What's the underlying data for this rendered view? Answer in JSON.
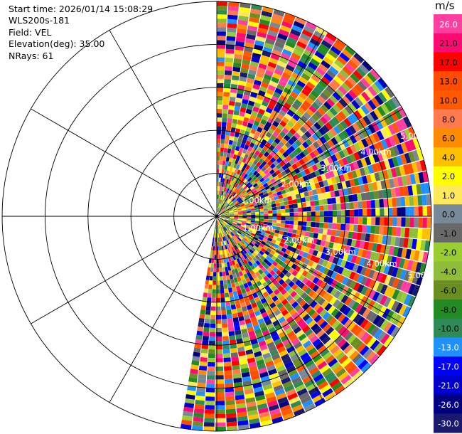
{
  "header": {
    "start_time": "Start time: 2026/01/14 15:08:29",
    "instrument": "WLS200s-181",
    "field": "Field: VEL",
    "elevation": "Elevation(deg): 35.00",
    "nrays": "NRays: 61"
  },
  "colorbar": {
    "unit": "m/s",
    "levels": [
      {
        "label": "26.0",
        "color": "#ff3fa0"
      },
      {
        "label": "21.0",
        "color": "#ff0a73"
      },
      {
        "label": "17.0",
        "color": "#ff0000"
      },
      {
        "label": "13.0",
        "color": "#ff4c00"
      },
      {
        "label": "10.0",
        "color": "#ff5a00"
      },
      {
        "label": "8.0",
        "color": "#ff7a4c"
      },
      {
        "label": "6.0",
        "color": "#ff8c00"
      },
      {
        "label": "4.0",
        "color": "#ffc000"
      },
      {
        "label": "2.0",
        "color": "#ffff00"
      },
      {
        "label": "1.0",
        "color": "#ffe85a"
      },
      {
        "label": "0.0",
        "color": "#778899"
      },
      {
        "label": "-1.0",
        "color": "#696969"
      },
      {
        "label": "-2.0",
        "color": "#9acd32"
      },
      {
        "label": "-4.0",
        "color": "#8fbc3b"
      },
      {
        "label": "-6.0",
        "color": "#6b8e23"
      },
      {
        "label": "-8.0",
        "color": "#228b22"
      },
      {
        "label": "-10.0",
        "color": "#2e8b57"
      },
      {
        "label": "-13.0",
        "color": "#1e90ff"
      },
      {
        "label": "-17.0",
        "color": "#0000ff"
      },
      {
        "label": "-21.0",
        "color": "#0000cd"
      },
      {
        "label": "-26.0",
        "color": "#000080"
      },
      {
        "label": "-30.0",
        "color": "#191970"
      }
    ]
  },
  "chart_data": {
    "type": "heatmap",
    "projection": "polar-ppi",
    "field": "VEL",
    "units": "m/s",
    "elevation_deg": 35.0,
    "nrays": 61,
    "azimuth_range_deg": [
      0,
      190
    ],
    "max_range_km": 5.0,
    "range_ring_labels": [
      "1.00km",
      "2.00km",
      "3.00km",
      "4.00km",
      "5.00km"
    ],
    "grid": true,
    "colorbar_ticks": [
      26.0,
      21.0,
      17.0,
      13.0,
      10.0,
      8.0,
      6.0,
      4.0,
      2.0,
      1.0,
      0.0,
      -1.0,
      -2.0,
      -4.0,
      -6.0,
      -8.0,
      -10.0,
      -13.0,
      -17.0,
      -21.0,
      -26.0,
      -30.0
    ]
  }
}
